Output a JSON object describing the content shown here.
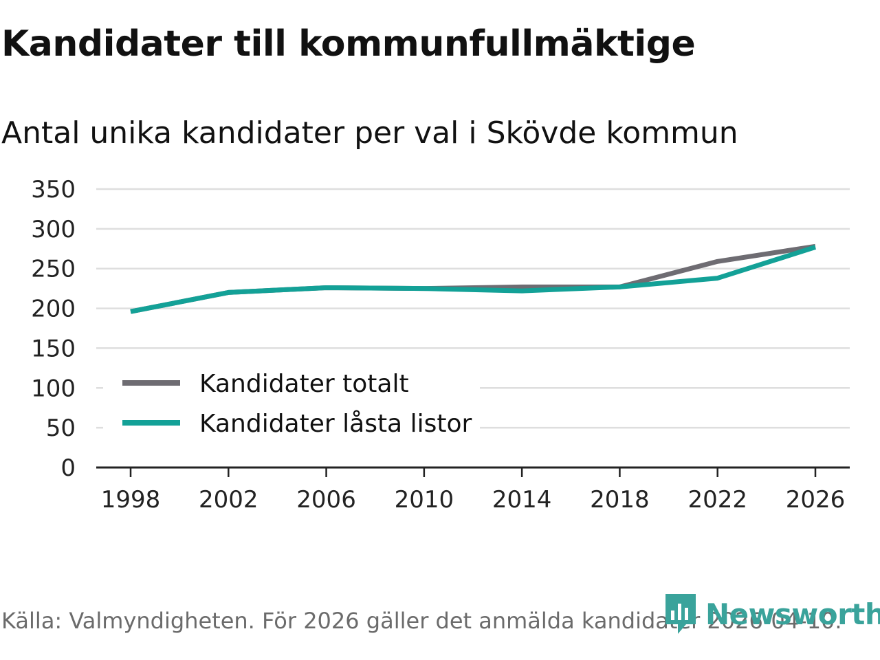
{
  "title": "Kandidater till kommunfullmäktige",
  "subtitle": "Antal unika kandidater per val i Skövde kommun",
  "source": "Källa: Valmyndigheten. För 2026 gäller det anmälda kandidater 2026-04-10.",
  "brand": {
    "name": "Newsworthy",
    "color": "#3aa39b"
  },
  "chart_data": {
    "type": "line",
    "x": [
      "1998",
      "2002",
      "2006",
      "2010",
      "2014",
      "2018",
      "2022",
      "2026"
    ],
    "series": [
      {
        "name": "Kandidater totalt",
        "color": "#6e6c72",
        "values": [
          196,
          220,
          226,
          225,
          227,
          227,
          259,
          278
        ]
      },
      {
        "name": "Kandidater låsta listor",
        "color": "#13a197",
        "values": [
          196,
          220,
          226,
          225,
          222,
          227,
          238,
          277
        ]
      }
    ],
    "yticks": [
      "0",
      "50",
      "100",
      "150",
      "200",
      "250",
      "300",
      "350"
    ],
    "ylim": [
      0,
      350
    ],
    "grid": true,
    "legend": "bottom-left"
  }
}
